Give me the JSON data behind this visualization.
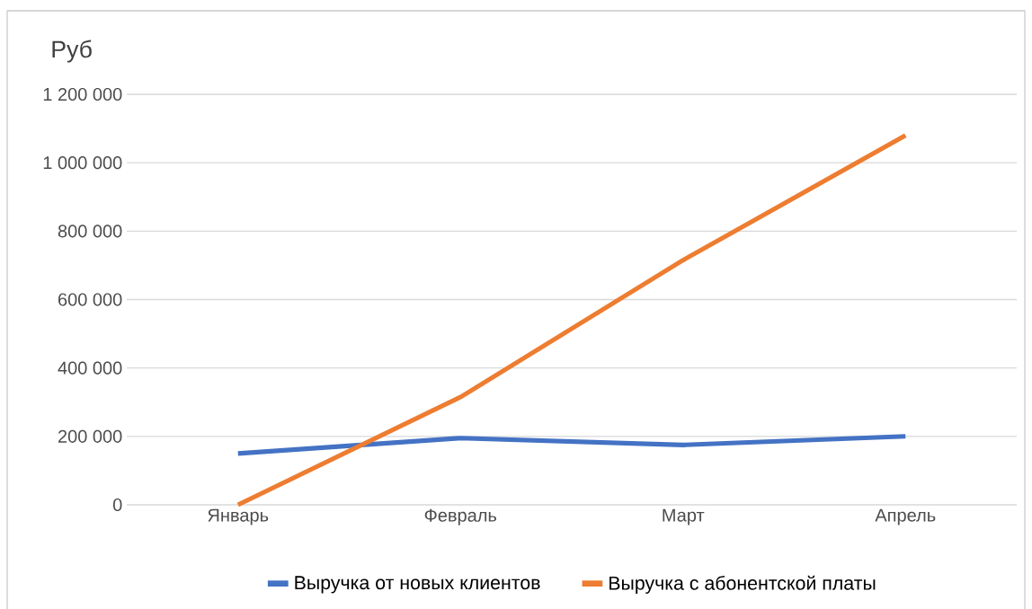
{
  "chart_data": {
    "type": "line",
    "ylabel": "Руб",
    "categories": [
      "Январь",
      "Февраль",
      "Март",
      "Апрель"
    ],
    "series": [
      {
        "name": "Выручка от новых клиентов",
        "color": "#4472c4",
        "values": [
          150000,
          195000,
          175000,
          200000
        ]
      },
      {
        "name": "Выручка с абонентской платы",
        "color": "#ed7d31",
        "values": [
          0,
          315000,
          715000,
          1080000
        ]
      }
    ],
    "ylim": [
      0,
      1200000
    ],
    "yticks": [
      {
        "value": 0,
        "label": "0"
      },
      {
        "value": 200000,
        "label": "200 000"
      },
      {
        "value": 400000,
        "label": "400 000"
      },
      {
        "value": 600000,
        "label": "600 000"
      },
      {
        "value": 800000,
        "label": "800 000"
      },
      {
        "value": 1000000,
        "label": "1 000 000"
      },
      {
        "value": 1200000,
        "label": "1 200 000"
      }
    ],
    "grid": "y",
    "legend": "bottom",
    "marker": "none",
    "line_style": "solid"
  }
}
